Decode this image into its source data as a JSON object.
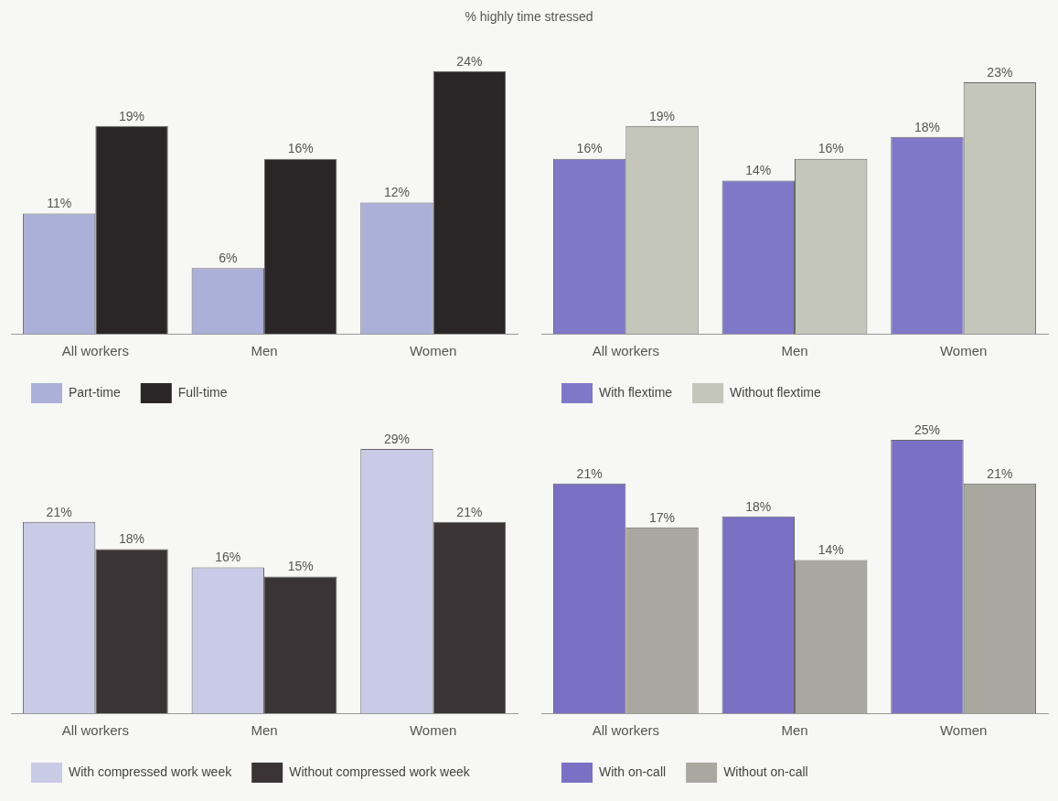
{
  "chart_data": [
    {
      "type": "bar",
      "title": "% highly time stressed",
      "categories": [
        "All workers",
        "Men",
        "Women"
      ],
      "series": [
        {
          "name": "Part-time",
          "color": "#aab0d8",
          "values": [
            11,
            6,
            12
          ],
          "value_labels": [
            "11%",
            "6%",
            "12%"
          ]
        },
        {
          "name": "Full-time",
          "color": "#2a2628",
          "values": [
            19,
            16,
            24
          ],
          "value_labels": [
            "19%",
            "16%",
            "24%"
          ]
        }
      ],
      "legend": "bottom left",
      "grid": false
    },
    {
      "type": "bar",
      "categories": [
        "All workers",
        "Men",
        "Women"
      ],
      "series": [
        {
          "name": "With flextime",
          "color": "#7f78c8",
          "values": [
            16,
            14,
            18
          ],
          "value_labels": [
            "16%",
            "14%",
            "18%"
          ]
        },
        {
          "name": "Without flextime",
          "color": "#c4c6bc",
          "values": [
            19,
            16,
            23
          ],
          "value_labels": [
            "19%",
            "16%",
            "23%"
          ]
        }
      ],
      "legend": "bottom left",
      "grid": false
    },
    {
      "type": "bar",
      "categories": [
        "All workers",
        "Men",
        "Women"
      ],
      "series": [
        {
          "name": "With compressed work week",
          "color": "#c8cae6",
          "values": [
            21,
            16,
            29
          ],
          "value_labels": [
            "21%",
            "16%",
            "29%"
          ]
        },
        {
          "name": "Without compressed work week",
          "color": "#3a3436",
          "values": [
            18,
            15,
            21
          ],
          "value_labels": [
            "18%",
            "15%",
            "21%"
          ]
        }
      ],
      "legend": "bottom left",
      "grid": false
    },
    {
      "type": "bar",
      "categories": [
        "All workers",
        "Men",
        "Women"
      ],
      "series": [
        {
          "name": "With on-call",
          "color": "#7b70c4",
          "values": [
            21,
            18,
            25
          ],
          "value_labels": [
            "21%",
            "18%",
            "25%"
          ]
        },
        {
          "name": "Without on-call",
          "color": "#a8a8a0",
          "values": [
            17,
            14,
            21
          ],
          "value_labels": [
            "17%",
            "14%",
            "21%"
          ]
        }
      ],
      "legend": "bottom left",
      "grid": false
    }
  ]
}
